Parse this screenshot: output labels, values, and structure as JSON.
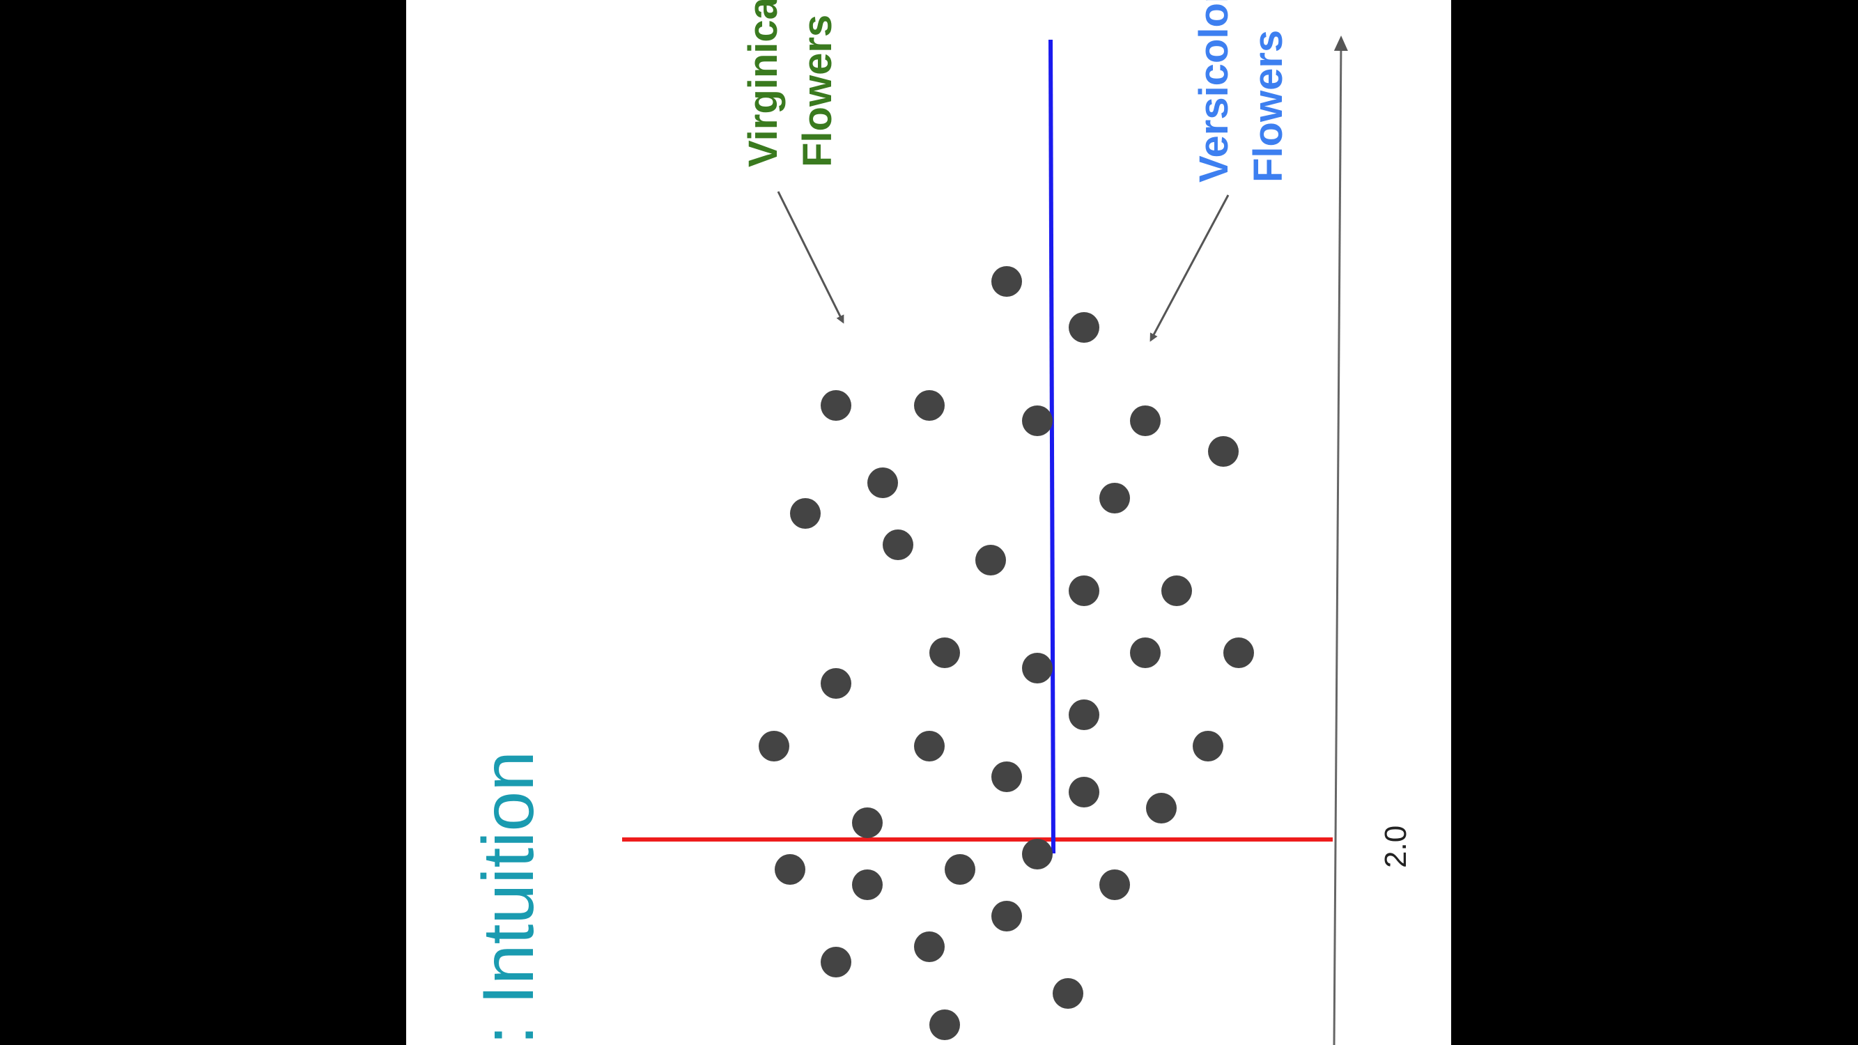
{
  "title": ": Intuition",
  "labels": {
    "virginica_line1": "Virginica",
    "virginica_line2": "Flowers",
    "versicolor_line1": "Versicolor",
    "versicolor_line2": "Flowers"
  },
  "axis": {
    "tick_label": "2.0"
  },
  "colors": {
    "background": "#000000",
    "slide": "#ffffff",
    "title": "#1a9bb0",
    "virginica": "#3a7a1f",
    "versicolor": "#3d7ff0",
    "points": "#444444",
    "arrow": "#555555",
    "red_line": "#ee1c1c",
    "blue_line": "#1a1aee"
  }
}
